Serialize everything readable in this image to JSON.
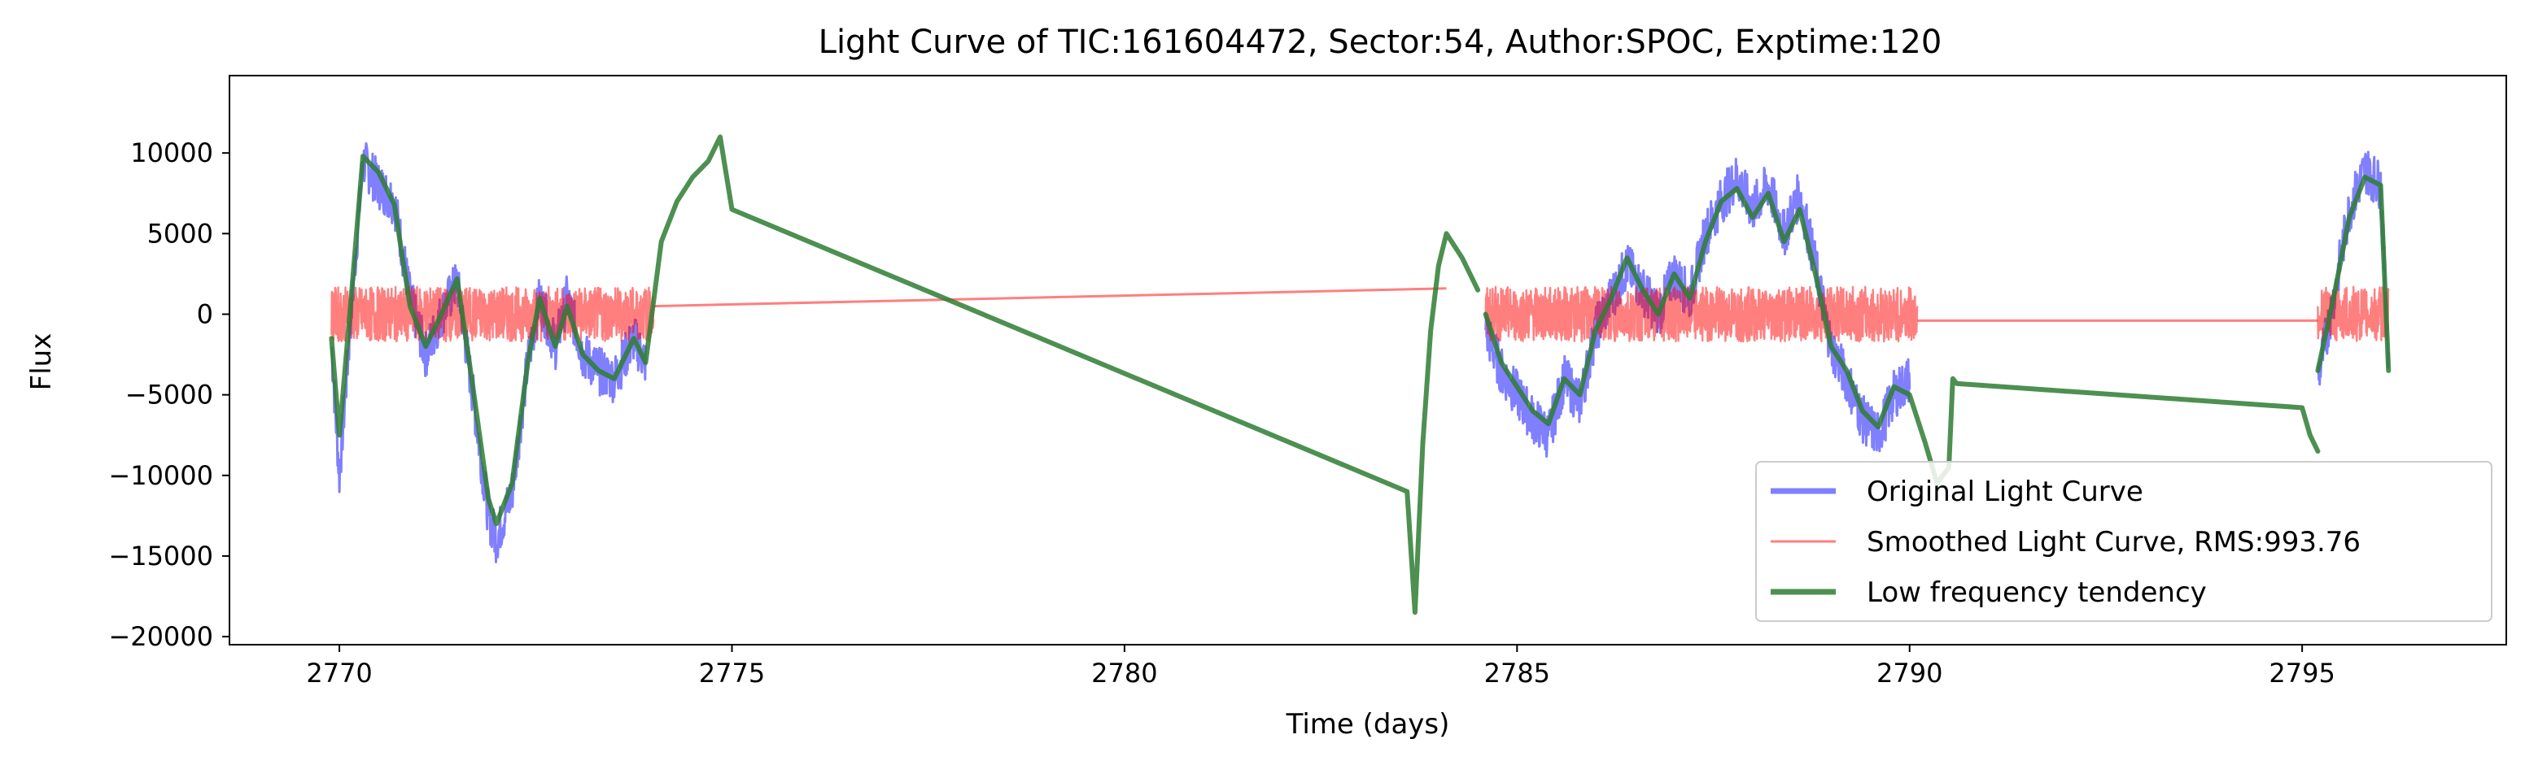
{
  "chart_data": {
    "type": "line",
    "title": "Light Curve of TIC:161604472, Sector:54, Author:SPOC, Exptime:120",
    "xlabel": "Time (days)",
    "ylabel": "Flux",
    "xlim": [
      2768.6,
      2797.6
    ],
    "ylim": [
      -20500,
      14800
    ],
    "x_ticks": [
      2770,
      2775,
      2780,
      2785,
      2790,
      2795
    ],
    "x_tick_labels": [
      "2770",
      "2775",
      "2780",
      "2785",
      "2790",
      "2795"
    ],
    "y_ticks": [
      10000,
      5000,
      0,
      -5000,
      -10000,
      -15000,
      -20000
    ],
    "y_tick_labels": [
      "10000",
      "5000",
      "0",
      "−5000",
      "−10000",
      "−15000",
      "−20000"
    ],
    "grid": false,
    "legend_position": "lower-right",
    "series": [
      {
        "name": "Original Light Curve",
        "color": "#0000ff",
        "alpha": 0.5,
        "segments": [
          {
            "x": [
              2769.9,
              2770.0,
              2770.15,
              2770.3,
              2770.5,
              2770.7,
              2770.9,
              2771.1,
              2771.3,
              2771.5,
              2771.7,
              2771.9,
              2772.0,
              2772.2,
              2772.4,
              2772.55,
              2772.75,
              2772.9,
              2773.1,
              2773.3,
              2773.5,
              2773.75,
              2773.9
            ],
            "y": [
              -2000,
              -10000,
              0,
              9500,
              8000,
              7000,
              1000,
              -2500,
              0,
              2000,
              -5000,
              -12500,
              -14000,
              -11000,
              -3000,
              1000,
              -2000,
              1000,
              -2500,
              -3500,
              -4000,
              -1500,
              -3000
            ]
          },
          {
            "x": [
              2784.6,
              2784.8,
              2785.0,
              2785.2,
              2785.4,
              2785.6,
              2785.8,
              2786.0,
              2786.2,
              2786.4,
              2786.6,
              2786.8,
              2787.0,
              2787.2,
              2787.4,
              2787.6,
              2787.8,
              2788.0,
              2788.2,
              2788.4,
              2788.6,
              2788.8,
              2789.0,
              2789.2,
              2789.4,
              2789.6,
              2789.8,
              2790.0
            ],
            "y": [
              -1000,
              -3500,
              -5000,
              -6500,
              -7500,
              -4000,
              -5500,
              -1000,
              1000,
              3000,
              1500,
              0,
              2500,
              1000,
              5000,
              7000,
              8500,
              6500,
              8000,
              5000,
              7500,
              3000,
              -2000,
              -4000,
              -6500,
              -7500,
              -5000,
              -4000
            ]
          },
          {
            "x": [
              2795.2,
              2795.4,
              2795.6,
              2795.8,
              2796.0,
              2796.1
            ],
            "y": [
              -4000,
              1000,
              6500,
              9000,
              8000,
              -3000
            ]
          }
        ]
      },
      {
        "name": "Smoothed Light Curve, RMS:993.76",
        "color": "#ff0000",
        "alpha": 0.5,
        "noise_amplitude": 1700,
        "segments": [
          {
            "x": [
              2769.9,
              2774.0
            ],
            "y": [
              0,
              0
            ]
          },
          {
            "x": [
              2774.0,
              2784.1
            ],
            "y": [
              500,
              1600
            ]
          },
          {
            "x": [
              2784.6,
              2790.1
            ],
            "y": [
              0,
              0
            ]
          },
          {
            "x": [
              2790.1,
              2795.2
            ],
            "y": [
              -400,
              -400
            ]
          },
          {
            "x": [
              2795.2,
              2796.1
            ],
            "y": [
              0,
              0
            ]
          }
        ]
      },
      {
        "name": "Low frequency tendency",
        "color": "#2e7d32",
        "alpha": 0.85,
        "segments": [
          {
            "x": [
              2769.9,
              2770.0,
              2770.15,
              2770.3,
              2770.5,
              2770.7,
              2770.9,
              2771.1,
              2771.3,
              2771.5,
              2771.7,
              2771.9,
              2772.0,
              2772.2,
              2772.4,
              2772.55,
              2772.75,
              2772.9,
              2773.1,
              2773.3,
              2773.5,
              2773.75,
              2773.9,
              2774.1,
              2774.3,
              2774.5,
              2774.7,
              2774.85,
              2775.0,
              2783.6,
              2783.7,
              2783.8,
              2783.9,
              2784.0,
              2784.1,
              2784.3,
              2784.5
            ],
            "y": [
              -1500,
              -7500,
              1000,
              9800,
              8800,
              6800,
              500,
              -2000,
              0,
              2200,
              -4500,
              -11500,
              -13000,
              -10500,
              -3000,
              1000,
              -2000,
              500,
              -2500,
              -3500,
              -4000,
              -1500,
              -3000,
              4500,
              7000,
              8500,
              9500,
              11000,
              6500,
              -11000,
              -18500,
              -8000,
              -1000,
              3000,
              5000,
              3500,
              1500
            ]
          },
          {
            "x": [
              2784.6,
              2784.8,
              2785.0,
              2785.2,
              2785.4,
              2785.6,
              2785.8,
              2786.0,
              2786.2,
              2786.4,
              2786.6,
              2786.8,
              2787.0,
              2787.2,
              2787.4,
              2787.6,
              2787.8,
              2788.0,
              2788.2,
              2788.4,
              2788.6,
              2788.8,
              2789.0,
              2789.2,
              2789.4,
              2789.6,
              2789.8,
              2790.0,
              2790.2,
              2790.35,
              2790.5,
              2790.55,
              2790.6,
              2795.0,
              2795.1,
              2795.2
            ],
            "y": [
              0,
              -3000,
              -4500,
              -6000,
              -6800,
              -4000,
              -5000,
              -1000,
              1000,
              3500,
              1500,
              0,
              2500,
              1000,
              4500,
              7000,
              7800,
              6000,
              7500,
              4500,
              6500,
              2500,
              -2000,
              -3500,
              -6000,
              -7000,
              -4500,
              -5000,
              -8000,
              -10500,
              -9500,
              -4000,
              -4300,
              -5800,
              -7500,
              -8500
            ]
          },
          {
            "x": [
              2795.2,
              2795.4,
              2795.6,
              2795.8,
              2796.0,
              2796.1
            ],
            "y": [
              -3500,
              1000,
              6000,
              8500,
              8000,
              -3500
            ]
          }
        ]
      }
    ]
  }
}
